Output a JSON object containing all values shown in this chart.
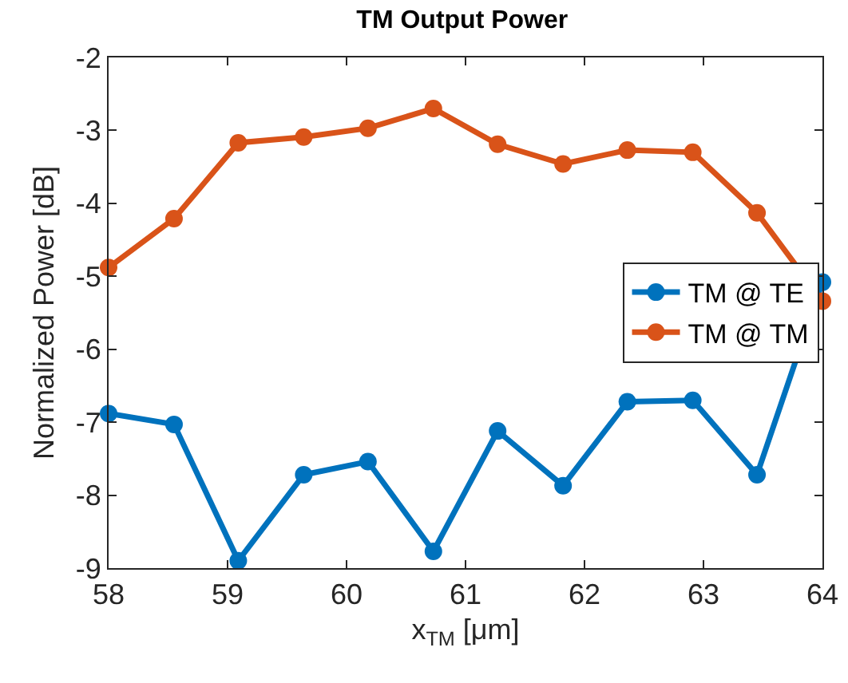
{
  "chart_data": {
    "type": "line",
    "title": "TM Output Power",
    "xlabel": "x$_{TM}$ [μm]",
    "ylabel": "Normalized Power [dB]",
    "x": [
      58,
      58.55,
      59.09,
      59.64,
      60.18,
      60.73,
      61.27,
      61.82,
      62.36,
      62.91,
      63.45,
      64
    ],
    "series": [
      {
        "name": "TM @ TE",
        "color": "#0072bd",
        "values": [
          -6.88,
          -7.03,
          -8.9,
          -7.72,
          -7.54,
          -8.77,
          -7.12,
          -7.87,
          -6.72,
          -6.7,
          -7.72,
          -5.08
        ]
      },
      {
        "name": "TM @ TM",
        "color": "#d95319",
        "values": [
          -4.88,
          -4.21,
          -3.17,
          -3.09,
          -2.97,
          -2.7,
          -3.19,
          -3.46,
          -3.27,
          -3.3,
          -4.13,
          -5.34
        ]
      }
    ],
    "xlim": [
      58,
      64
    ],
    "xticks": [
      58,
      59,
      60,
      61,
      62,
      63,
      64
    ],
    "ylim": [
      -9,
      -2
    ],
    "yticks": [
      -9,
      -8,
      -7,
      -6,
      -5,
      -4,
      -3,
      -2
    ],
    "grid": false,
    "legend": "right",
    "marker": "circle",
    "line_style": "solid"
  }
}
